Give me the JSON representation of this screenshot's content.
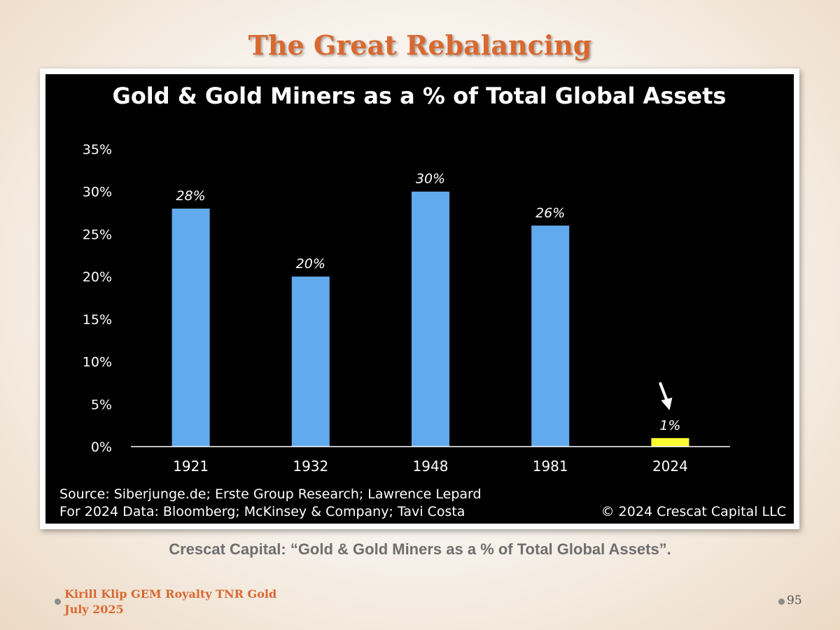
{
  "slide": {
    "title": "The Great Rebalancing",
    "caption": "Crescat Capital: “Gold & Gold Miners as a % of Total Global Assets”.",
    "footer_line1": "Kirill Klip GEM Royalty TNR Gold",
    "footer_line2": "July 2025",
    "page_number": "95"
  },
  "chart_data": {
    "type": "bar",
    "title": "Gold & Gold Miners as a % of Total Global Assets",
    "categories": [
      "1921",
      "1932",
      "1948",
      "1981",
      "2024"
    ],
    "values": [
      28,
      20,
      30,
      26,
      1
    ],
    "data_labels": [
      "28%",
      "20%",
      "30%",
      "26%",
      "1%"
    ],
    "ylim": [
      0,
      35
    ],
    "yticks": [
      "0%",
      "5%",
      "10%",
      "15%",
      "20%",
      "25%",
      "30%",
      "35%"
    ],
    "xlabel": "",
    "ylabel": "",
    "grid": false,
    "colors": {
      "bar": "#62aaee",
      "highlight_bar": "#ffff33",
      "background": "#000000",
      "text": "#ffffff"
    },
    "highlight_index": 4,
    "annotation": "arrow pointing to 2024 bar",
    "source_line1": "Source: Siberjunge.de; Erste Group Research; Lawrence Lepard",
    "source_line2": "For 2024 Data: Bloomberg; McKinsey & Company; Tavi Costa",
    "copyright": "© 2024 Crescat Capital LLC"
  }
}
